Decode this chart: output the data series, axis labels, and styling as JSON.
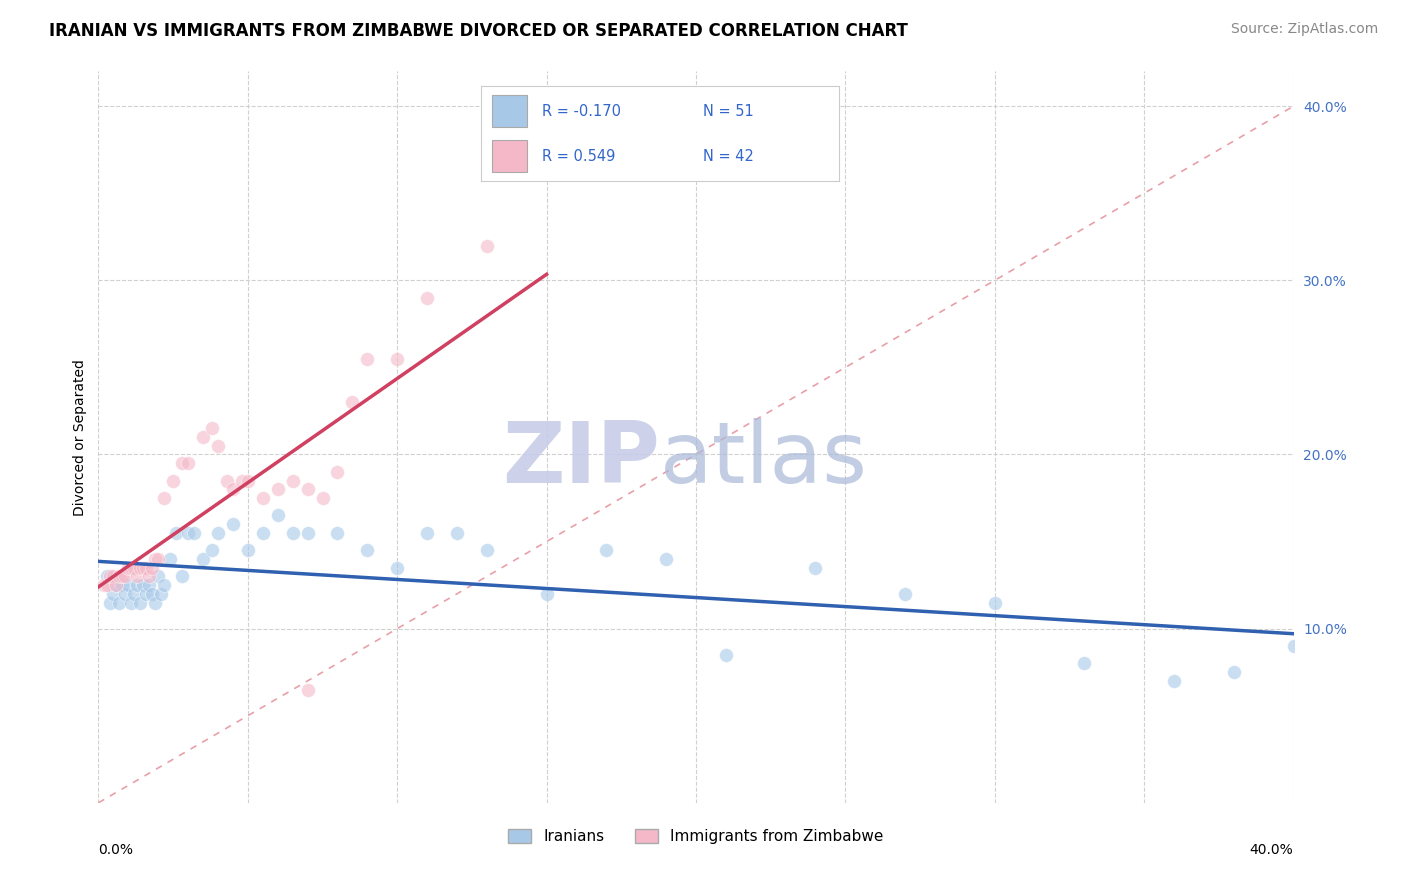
{
  "title": "IRANIAN VS IMMIGRANTS FROM ZIMBABWE DIVORCED OR SEPARATED CORRELATION CHART",
  "source": "Source: ZipAtlas.com",
  "ylabel": "Divorced or Separated",
  "watermark_zip": "ZIP",
  "watermark_atlas": "atlas",
  "legend_r1": "R = -0.170",
  "legend_n1": "N = 51",
  "legend_r2": "R = 0.549",
  "legend_n2": "N = 42",
  "blue_scatter_color": "#a8c8e8",
  "pink_scatter_color": "#f4b8c8",
  "blue_line_color": "#3060b0",
  "pink_line_color": "#d04060",
  "diagonal_color": "#e8a0a8",
  "grid_color": "#d0d0d0",
  "xlim": [
    0.0,
    0.4
  ],
  "ylim": [
    0.0,
    0.42
  ],
  "iranians_x": [
    0.003,
    0.004,
    0.005,
    0.006,
    0.007,
    0.008,
    0.009,
    0.01,
    0.011,
    0.012,
    0.013,
    0.014,
    0.015,
    0.016,
    0.017,
    0.018,
    0.019,
    0.02,
    0.021,
    0.022,
    0.024,
    0.026,
    0.028,
    0.03,
    0.032,
    0.035,
    0.038,
    0.04,
    0.045,
    0.05,
    0.055,
    0.06,
    0.065,
    0.07,
    0.08,
    0.09,
    0.1,
    0.11,
    0.12,
    0.13,
    0.15,
    0.17,
    0.19,
    0.21,
    0.24,
    0.27,
    0.3,
    0.33,
    0.36,
    0.38,
    0.4
  ],
  "iranians_y": [
    0.13,
    0.115,
    0.12,
    0.125,
    0.115,
    0.125,
    0.12,
    0.125,
    0.115,
    0.12,
    0.125,
    0.115,
    0.125,
    0.12,
    0.125,
    0.12,
    0.115,
    0.13,
    0.12,
    0.125,
    0.14,
    0.155,
    0.13,
    0.155,
    0.155,
    0.14,
    0.145,
    0.155,
    0.16,
    0.145,
    0.155,
    0.165,
    0.155,
    0.155,
    0.155,
    0.145,
    0.135,
    0.155,
    0.155,
    0.145,
    0.12,
    0.145,
    0.14,
    0.085,
    0.135,
    0.12,
    0.115,
    0.08,
    0.07,
    0.075,
    0.09
  ],
  "zimbabwe_x": [
    0.002,
    0.003,
    0.004,
    0.005,
    0.006,
    0.007,
    0.008,
    0.009,
    0.01,
    0.011,
    0.012,
    0.013,
    0.014,
    0.015,
    0.016,
    0.017,
    0.018,
    0.019,
    0.02,
    0.022,
    0.025,
    0.028,
    0.03,
    0.035,
    0.038,
    0.04,
    0.043,
    0.045,
    0.048,
    0.05,
    0.055,
    0.06,
    0.065,
    0.07,
    0.075,
    0.08,
    0.085,
    0.09,
    0.1,
    0.11,
    0.13,
    0.07
  ],
  "zimbabwe_y": [
    0.125,
    0.125,
    0.13,
    0.13,
    0.125,
    0.13,
    0.13,
    0.13,
    0.135,
    0.135,
    0.135,
    0.13,
    0.135,
    0.135,
    0.135,
    0.13,
    0.135,
    0.14,
    0.14,
    0.175,
    0.185,
    0.195,
    0.195,
    0.21,
    0.215,
    0.205,
    0.185,
    0.18,
    0.185,
    0.185,
    0.175,
    0.18,
    0.185,
    0.18,
    0.175,
    0.19,
    0.23,
    0.255,
    0.255,
    0.29,
    0.32,
    0.065
  ],
  "title_fontsize": 12,
  "axis_label_fontsize": 10,
  "tick_fontsize": 10,
  "source_fontsize": 10,
  "marker_size": 100,
  "marker_alpha": 0.6,
  "ytick_values": [
    0.1,
    0.2,
    0.3,
    0.4
  ],
  "ytick_labels": [
    "10.0%",
    "20.0%",
    "30.0%",
    "40.0%"
  ]
}
